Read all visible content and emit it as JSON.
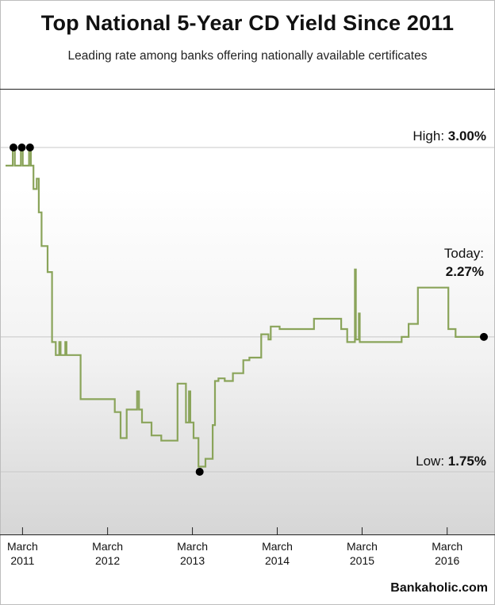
{
  "header": {
    "title": "Top National 5-Year CD Yield Since 2011",
    "subtitle": "Leading rate among banks offering nationally available certificates"
  },
  "annotations": {
    "high_label": "High:",
    "high_value": "3.00%",
    "today_label": "Today:",
    "today_value": "2.27%",
    "low_label": "Low:",
    "low_value": "1.75%"
  },
  "source": "Bankaholic.com",
  "colors": {
    "line": "#8aa45a",
    "marker": "#000000",
    "gridline": "#c8c8c8"
  },
  "chart_data": {
    "type": "line",
    "title": "Top National 5-Year CD Yield Since 2011",
    "subtitle": "Leading rate among banks offering nationally available certificates",
    "xlabel": "",
    "ylabel": "",
    "x_tick_labels": [
      {
        "month": "March",
        "year": "2011",
        "date": "2011-03"
      },
      {
        "month": "March",
        "year": "2012",
        "date": "2012-03"
      },
      {
        "month": "March",
        "year": "2013",
        "date": "2013-03"
      },
      {
        "month": "March",
        "year": "2014",
        "date": "2014-03"
      },
      {
        "month": "March",
        "year": "2015",
        "date": "2015-03"
      },
      {
        "month": "March",
        "year": "2016",
        "date": "2016-03"
      }
    ],
    "xlim": [
      "2011-01-01",
      "2016-09-01"
    ],
    "ylim": [
      1.6,
      3.2
    ],
    "reference_lines": [
      {
        "label": "High",
        "value": 3.0
      },
      {
        "label": "Today",
        "value": 2.27
      },
      {
        "label": "Low",
        "value": 1.75
      }
    ],
    "markers": [
      {
        "date": "2011-02-04",
        "value": 3.0
      },
      {
        "date": "2011-03-12",
        "value": 3.0
      },
      {
        "date": "2011-04-16",
        "value": 3.0
      },
      {
        "date": "2013-04-15",
        "value": 1.75
      },
      {
        "date": "2016-08-20",
        "value": 2.27
      }
    ],
    "series": [
      {
        "step": true,
        "points": [
          [
            "2011-01-01",
            2.93
          ],
          [
            "2011-02-01",
            2.93
          ],
          [
            "2011-02-01",
            3.0
          ],
          [
            "2011-02-10",
            3.0
          ],
          [
            "2011-02-10",
            2.93
          ],
          [
            "2011-03-08",
            2.93
          ],
          [
            "2011-03-08",
            3.0
          ],
          [
            "2011-03-16",
            3.0
          ],
          [
            "2011-03-16",
            2.93
          ],
          [
            "2011-04-12",
            2.93
          ],
          [
            "2011-04-12",
            3.0
          ],
          [
            "2011-04-20",
            3.0
          ],
          [
            "2011-04-20",
            2.93
          ],
          [
            "2011-05-01",
            2.93
          ],
          [
            "2011-05-01",
            2.84
          ],
          [
            "2011-05-15",
            2.84
          ],
          [
            "2011-05-15",
            2.88
          ],
          [
            "2011-05-24",
            2.88
          ],
          [
            "2011-05-24",
            2.75
          ],
          [
            "2011-06-05",
            2.75
          ],
          [
            "2011-06-05",
            2.62
          ],
          [
            "2011-07-01",
            2.62
          ],
          [
            "2011-07-01",
            2.52
          ],
          [
            "2011-07-20",
            2.52
          ],
          [
            "2011-07-20",
            2.25
          ],
          [
            "2011-08-05",
            2.25
          ],
          [
            "2011-08-05",
            2.2
          ],
          [
            "2011-08-20",
            2.2
          ],
          [
            "2011-08-20",
            2.25
          ],
          [
            "2011-08-26",
            2.25
          ],
          [
            "2011-08-26",
            2.2
          ],
          [
            "2011-09-15",
            2.2
          ],
          [
            "2011-09-15",
            2.25
          ],
          [
            "2011-09-20",
            2.25
          ],
          [
            "2011-09-20",
            2.2
          ],
          [
            "2011-11-20",
            2.2
          ],
          [
            "2011-11-20",
            2.03
          ],
          [
            "2012-04-15",
            2.03
          ],
          [
            "2012-04-15",
            1.98
          ],
          [
            "2012-05-10",
            1.98
          ],
          [
            "2012-05-10",
            1.88
          ],
          [
            "2012-06-05",
            1.88
          ],
          [
            "2012-06-05",
            1.99
          ],
          [
            "2012-07-20",
            1.99
          ],
          [
            "2012-07-20",
            2.06
          ],
          [
            "2012-07-28",
            2.06
          ],
          [
            "2012-07-28",
            1.99
          ],
          [
            "2012-08-10",
            1.99
          ],
          [
            "2012-08-10",
            1.94
          ],
          [
            "2012-09-20",
            1.94
          ],
          [
            "2012-09-20",
            1.89
          ],
          [
            "2012-11-01",
            1.89
          ],
          [
            "2012-11-01",
            1.87
          ],
          [
            "2013-01-10",
            1.87
          ],
          [
            "2013-01-10",
            2.09
          ],
          [
            "2013-02-15",
            2.09
          ],
          [
            "2013-02-15",
            1.94
          ],
          [
            "2013-02-28",
            1.94
          ],
          [
            "2013-02-28",
            2.06
          ],
          [
            "2013-03-06",
            2.06
          ],
          [
            "2013-03-06",
            1.94
          ],
          [
            "2013-03-20",
            1.94
          ],
          [
            "2013-03-20",
            1.88
          ],
          [
            "2013-04-10",
            1.88
          ],
          [
            "2013-04-10",
            1.77
          ],
          [
            "2013-05-10",
            1.77
          ],
          [
            "2013-05-10",
            1.8
          ],
          [
            "2013-06-10",
            1.8
          ],
          [
            "2013-06-10",
            1.93
          ],
          [
            "2013-06-20",
            1.93
          ],
          [
            "2013-06-20",
            2.1
          ],
          [
            "2013-07-05",
            2.1
          ],
          [
            "2013-07-05",
            2.11
          ],
          [
            "2013-08-01",
            2.11
          ],
          [
            "2013-08-01",
            2.1
          ],
          [
            "2013-09-05",
            2.1
          ],
          [
            "2013-09-05",
            2.13
          ],
          [
            "2013-10-20",
            2.13
          ],
          [
            "2013-10-20",
            2.18
          ],
          [
            "2013-11-15",
            2.18
          ],
          [
            "2013-11-15",
            2.19
          ],
          [
            "2014-01-05",
            2.19
          ],
          [
            "2014-01-05",
            2.28
          ],
          [
            "2014-02-05",
            2.28
          ],
          [
            "2014-02-05",
            2.26
          ],
          [
            "2014-02-15",
            2.26
          ],
          [
            "2014-02-15",
            2.31
          ],
          [
            "2014-03-25",
            2.31
          ],
          [
            "2014-03-25",
            2.3
          ],
          [
            "2014-08-20",
            2.3
          ],
          [
            "2014-08-20",
            2.34
          ],
          [
            "2014-12-15",
            2.34
          ],
          [
            "2014-12-15",
            2.3
          ],
          [
            "2015-01-10",
            2.3
          ],
          [
            "2015-01-10",
            2.25
          ],
          [
            "2015-02-12",
            2.25
          ],
          [
            "2015-02-12",
            2.53
          ],
          [
            "2015-02-16",
            2.53
          ],
          [
            "2015-02-16",
            2.26
          ],
          [
            "2015-03-01",
            2.26
          ],
          [
            "2015-03-01",
            2.36
          ],
          [
            "2015-03-05",
            2.36
          ],
          [
            "2015-03-05",
            2.25
          ],
          [
            "2015-09-01",
            2.25
          ],
          [
            "2015-09-01",
            2.27
          ],
          [
            "2015-10-01",
            2.27
          ],
          [
            "2015-10-01",
            2.32
          ],
          [
            "2015-11-10",
            2.32
          ],
          [
            "2015-11-10",
            2.46
          ],
          [
            "2016-03-20",
            2.46
          ],
          [
            "2016-03-20",
            2.3
          ],
          [
            "2016-04-20",
            2.3
          ],
          [
            "2016-04-20",
            2.27
          ],
          [
            "2016-08-20",
            2.27
          ]
        ]
      }
    ]
  }
}
